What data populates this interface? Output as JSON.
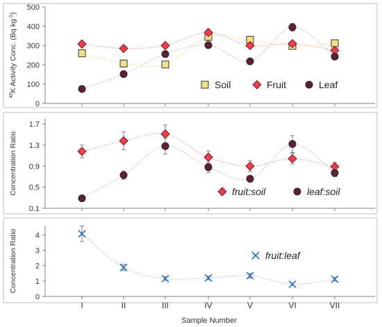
{
  "chart_data": [
    {
      "type": "scatter",
      "ylabel_prefix": "40",
      "ylabel_main": "K Activity Conc. (Bq kg",
      "ylabel_sup": "-1",
      "ylabel_close": ")",
      "ylim": [
        0,
        500
      ],
      "yticks": [
        "0",
        "100",
        "200",
        "300",
        "400",
        "500"
      ],
      "legend_placement": "bottom-right",
      "series": [
        {
          "name": "Soil",
          "marker": "square",
          "color": "#f5e08a",
          "stroke": "#333333",
          "line_color": "#f2d98c",
          "values": [
            260,
            207,
            202,
            345,
            330,
            298,
            312
          ],
          "errors": [
            0,
            0,
            0,
            20,
            15,
            15,
            0
          ]
        },
        {
          "name": "Fruit",
          "marker": "diamond",
          "color": "#e8404f",
          "stroke": "#7a1a22",
          "line_color": "#e8a0a8",
          "values": [
            308,
            285,
            300,
            368,
            300,
            310,
            275
          ],
          "errors": [
            0,
            0,
            0,
            15,
            0,
            0,
            0
          ]
        },
        {
          "name": "Leaf",
          "marker": "circle",
          "color": "#5a2336",
          "stroke": "#3a1522",
          "line_color": "#c8b8c0",
          "values": [
            75,
            152,
            256,
            302,
            218,
            395,
            243
          ],
          "errors": [
            0,
            0,
            15,
            15,
            0,
            20,
            0
          ]
        }
      ]
    },
    {
      "type": "scatter",
      "ylabel": "Concentration Ratio",
      "ylim": [
        0.1,
        1.8
      ],
      "yticks": [
        "0.1",
        "0.5",
        "0.9",
        "1.3",
        "1.7"
      ],
      "legend_placement": "bottom-right",
      "series": [
        {
          "name": "fruit:soil",
          "marker": "diamond",
          "color": "#e8404f",
          "stroke": "#7a1a22",
          "line_color": "#e8a0a8",
          "values": [
            1.18,
            1.38,
            1.51,
            1.07,
            0.9,
            1.04,
            0.89
          ],
          "errors": [
            0.12,
            0.17,
            0.17,
            0.12,
            0.1,
            0.1,
            0.08
          ]
        },
        {
          "name": "leaf:soil",
          "marker": "circle",
          "color": "#5a2336",
          "stroke": "#3a1522",
          "line_color": "#c8b8c0",
          "values": [
            0.29,
            0.73,
            1.28,
            0.88,
            0.66,
            1.32,
            0.77
          ],
          "errors": [
            0,
            0.08,
            0.15,
            0.1,
            0.06,
            0.16,
            0.07
          ]
        }
      ]
    },
    {
      "type": "scatter",
      "ylabel": "Concentration Ratio",
      "ylim": [
        0,
        4.6
      ],
      "yticks": [
        "0",
        "1",
        "2",
        "3",
        "4"
      ],
      "legend_placement": "center-right",
      "series": [
        {
          "name": "fruit:leaf",
          "marker": "x",
          "color": "#2f6fc0",
          "stroke": "#2f6fc0",
          "line_color": "#a8c4e6",
          "values": [
            4.07,
            1.88,
            1.16,
            1.2,
            1.35,
            0.79,
            1.12
          ],
          "errors": [
            0.5,
            0.2,
            0.12,
            0.12,
            0.15,
            0.08,
            0.12
          ]
        }
      ]
    }
  ],
  "categories": [
    "I",
    "II",
    "III",
    "IV",
    "V",
    "VI",
    "VII"
  ],
  "xlabel": "Sample Number"
}
